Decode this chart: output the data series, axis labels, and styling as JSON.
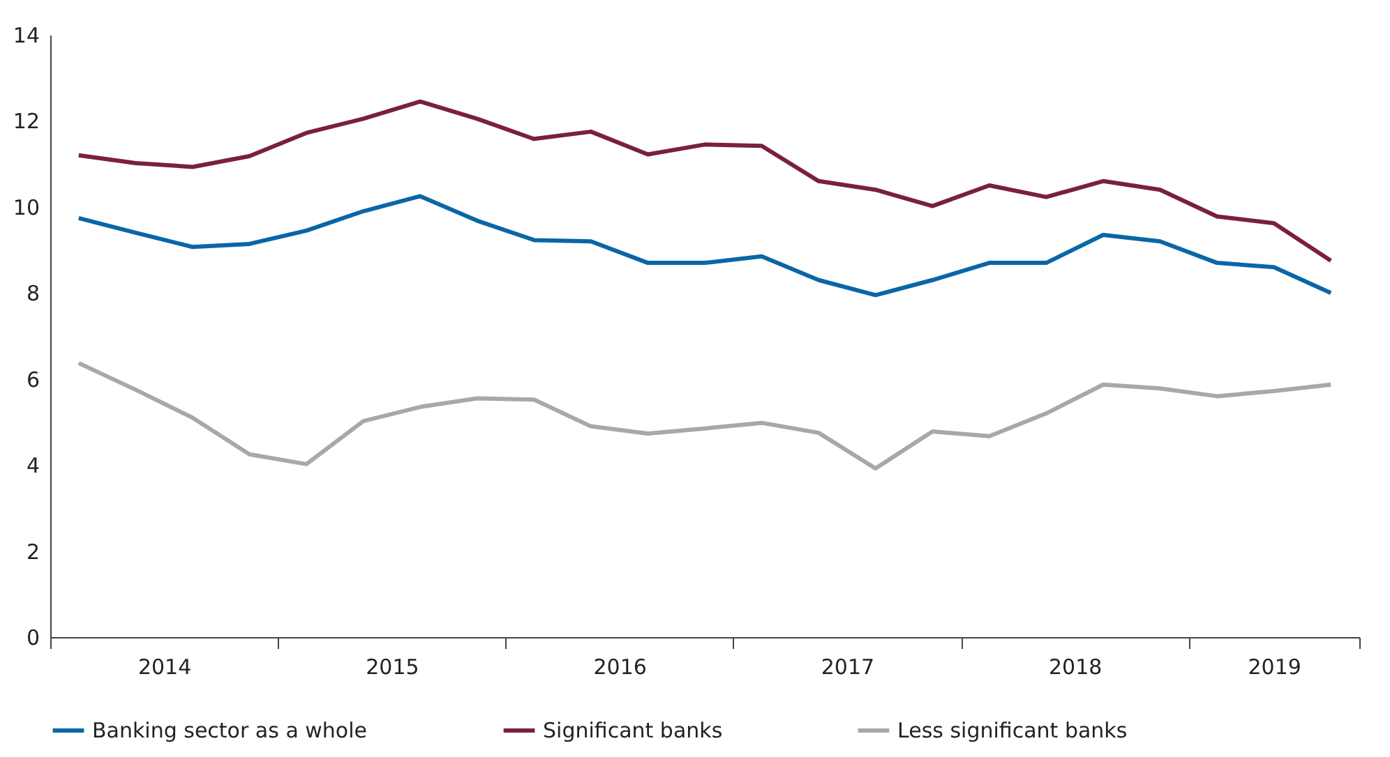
{
  "chart_data": {
    "type": "line",
    "x": [
      2014.125,
      2014.375,
      2014.625,
      2014.875,
      2015.125,
      2015.375,
      2015.625,
      2015.875,
      2016.125,
      2016.375,
      2016.625,
      2016.875,
      2017.125,
      2017.375,
      2017.625,
      2017.875,
      2018.125,
      2018.375,
      2018.625,
      2018.875,
      2019.125,
      2019.375,
      2019.625
    ],
    "series": [
      {
        "name": "Banking sector as a whole",
        "color": "#0a66a6",
        "values": [
          9.74,
          9.4,
          9.07,
          9.14,
          9.45,
          9.9,
          10.25,
          9.68,
          9.23,
          9.2,
          8.7,
          8.7,
          8.85,
          8.3,
          7.95,
          8.3,
          8.7,
          8.7,
          9.35,
          9.2,
          8.7,
          8.6,
          8.0
        ]
      },
      {
        "name": "Significant banks",
        "color": "#7a1f40",
        "values": [
          11.2,
          11.02,
          10.93,
          11.18,
          11.72,
          12.05,
          12.45,
          12.05,
          11.58,
          11.75,
          11.22,
          11.45,
          11.42,
          10.6,
          10.4,
          10.02,
          10.5,
          10.23,
          10.6,
          10.4,
          9.78,
          9.62,
          8.75
        ]
      },
      {
        "name": "Less significant banks",
        "color": "#a4a9ad",
        "values": [
          6.37,
          5.75,
          5.1,
          4.25,
          4.02,
          5.02,
          5.35,
          5.55,
          5.52,
          4.9,
          4.73,
          4.85,
          4.98,
          4.75,
          3.92,
          4.78,
          4.67,
          5.2,
          5.87,
          5.78,
          5.6,
          5.72,
          5.87
        ]
      }
    ],
    "xlim": [
      2014,
      2019.75
    ],
    "xticks": [
      {
        "value": 2014,
        "label": null
      },
      {
        "value": 2014.5,
        "label": "2014"
      },
      {
        "value": 2015,
        "label": null
      },
      {
        "value": 2015.5,
        "label": "2015"
      },
      {
        "value": 2016,
        "label": null
      },
      {
        "value": 2016.5,
        "label": "2016"
      },
      {
        "value": 2017,
        "label": null
      },
      {
        "value": 2017.5,
        "label": "2017"
      },
      {
        "value": 2018,
        "label": null
      },
      {
        "value": 2018.5,
        "label": "2018"
      },
      {
        "value": 2019,
        "label": null
      },
      {
        "value": 2019.375,
        "label": "2019"
      },
      {
        "value": 2019.75,
        "label": null
      }
    ],
    "ylim": [
      0,
      14
    ],
    "yticks": [
      0,
      2,
      4,
      6,
      8,
      10,
      12,
      14
    ],
    "grid": false,
    "legend": "bottom",
    "marker": "none",
    "line_style": "solid"
  }
}
